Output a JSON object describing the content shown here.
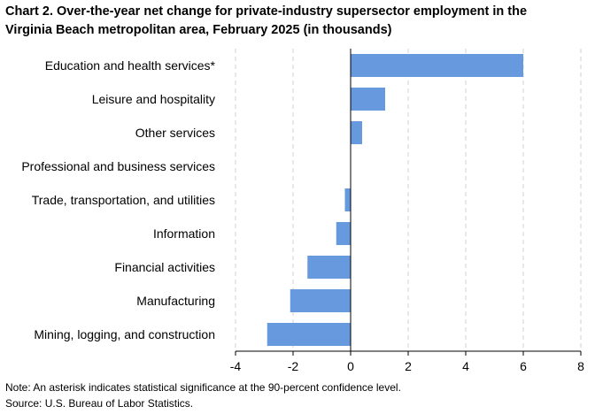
{
  "chart_data": {
    "type": "bar",
    "orientation": "horizontal",
    "title_lines": [
      "Chart 2. Over-the-year net change for private-industry supersector employment in the",
      "Virginia Beach metropolitan area, February 2025 (in thousands)"
    ],
    "categories": [
      "Education and health services*",
      "Leisure and hospitality",
      "Other services",
      "Professional and business services",
      "Trade, transportation, and utilities",
      "Information",
      "Financial activities",
      "Manufacturing",
      "Mining, logging, and construction"
    ],
    "values": [
      6.0,
      1.2,
      0.4,
      0.0,
      -0.2,
      -0.5,
      -1.5,
      -2.1,
      -2.9
    ],
    "xlim": [
      -4,
      8
    ],
    "xticks": [
      -4,
      -2,
      0,
      2,
      4,
      6,
      8
    ],
    "grid": true,
    "bar_color": "#6699dd",
    "xlabel": "",
    "ylabel": ""
  },
  "footnotes": {
    "note": "Note: An asterisk indicates statistical significance at the 90-percent confidence level.",
    "source": "Source: U.S. Bureau of Labor Statistics."
  }
}
